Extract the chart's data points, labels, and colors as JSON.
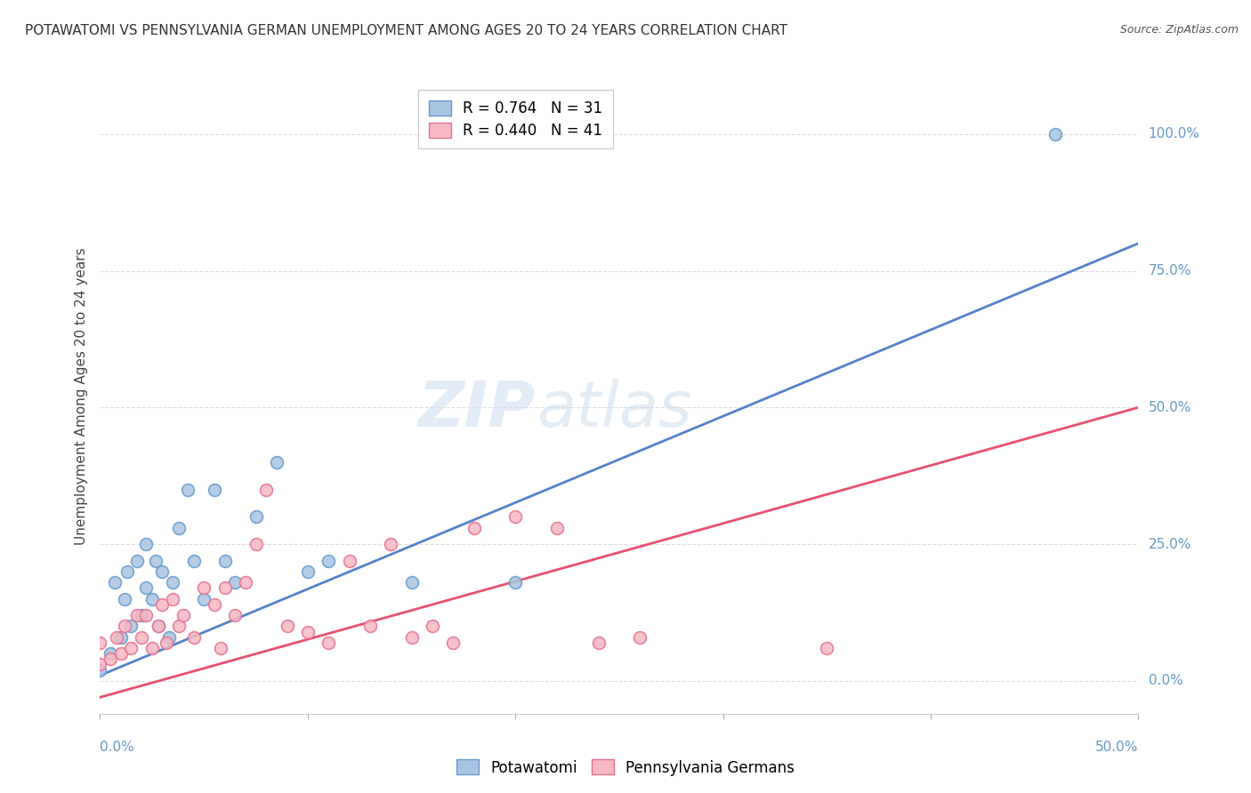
{
  "title": "POTAWATOMI VS PENNSYLVANIA GERMAN UNEMPLOYMENT AMONG AGES 20 TO 24 YEARS CORRELATION CHART",
  "source": "Source: ZipAtlas.com",
  "ylabel": "Unemployment Among Ages 20 to 24 years",
  "ytick_labels": [
    "0.0%",
    "25.0%",
    "50.0%",
    "75.0%",
    "100.0%"
  ],
  "ytick_values": [
    0.0,
    0.25,
    0.5,
    0.75,
    1.0
  ],
  "xlim": [
    0.0,
    0.5
  ],
  "ylim": [
    -0.06,
    1.1
  ],
  "watermark_zip": "ZIP",
  "watermark_atlas": "atlas",
  "blue_color": "#A8C4E0",
  "pink_color": "#F5B8C4",
  "blue_edge_color": "#6699CC",
  "pink_edge_color": "#E87090",
  "blue_line_color": "#5580CC",
  "pink_line_color": "#E85070",
  "legend_blue_R": "0.764",
  "legend_blue_N": "31",
  "legend_pink_R": "0.440",
  "legend_pink_N": "41",
  "blue_points_x": [
    0.0,
    0.005,
    0.007,
    0.01,
    0.012,
    0.013,
    0.015,
    0.018,
    0.02,
    0.022,
    0.022,
    0.025,
    0.027,
    0.028,
    0.03,
    0.033,
    0.035,
    0.038,
    0.042,
    0.045,
    0.05,
    0.055,
    0.06,
    0.065,
    0.075,
    0.085,
    0.1,
    0.11,
    0.15,
    0.2,
    0.46
  ],
  "blue_points_y": [
    0.02,
    0.05,
    0.18,
    0.08,
    0.15,
    0.2,
    0.1,
    0.22,
    0.12,
    0.17,
    0.25,
    0.15,
    0.22,
    0.1,
    0.2,
    0.08,
    0.18,
    0.28,
    0.35,
    0.22,
    0.15,
    0.35,
    0.22,
    0.18,
    0.3,
    0.4,
    0.2,
    0.22,
    0.18,
    0.18,
    1.0
  ],
  "pink_points_x": [
    0.0,
    0.0,
    0.005,
    0.008,
    0.01,
    0.012,
    0.015,
    0.018,
    0.02,
    0.022,
    0.025,
    0.028,
    0.03,
    0.032,
    0.035,
    0.038,
    0.04,
    0.045,
    0.05,
    0.055,
    0.058,
    0.06,
    0.065,
    0.07,
    0.075,
    0.08,
    0.09,
    0.1,
    0.11,
    0.12,
    0.13,
    0.14,
    0.15,
    0.16,
    0.17,
    0.18,
    0.2,
    0.22,
    0.24,
    0.26,
    0.35
  ],
  "pink_points_y": [
    0.03,
    0.07,
    0.04,
    0.08,
    0.05,
    0.1,
    0.06,
    0.12,
    0.08,
    0.12,
    0.06,
    0.1,
    0.14,
    0.07,
    0.15,
    0.1,
    0.12,
    0.08,
    0.17,
    0.14,
    0.06,
    0.17,
    0.12,
    0.18,
    0.25,
    0.35,
    0.1,
    0.09,
    0.07,
    0.22,
    0.1,
    0.25,
    0.08,
    0.1,
    0.07,
    0.28,
    0.3,
    0.28,
    0.07,
    0.08,
    0.06
  ],
  "blue_line_x": [
    0.0,
    0.5
  ],
  "blue_line_y": [
    0.01,
    0.8
  ],
  "pink_line_x": [
    0.0,
    0.5
  ],
  "pink_line_y": [
    -0.03,
    0.5
  ],
  "grid_color": "#DDDDDD",
  "background_color": "#FFFFFF",
  "title_color": "#333333",
  "axis_label_color": "#6699CC",
  "title_fontsize": 11,
  "source_fontsize": 9,
  "marker_size": 100
}
